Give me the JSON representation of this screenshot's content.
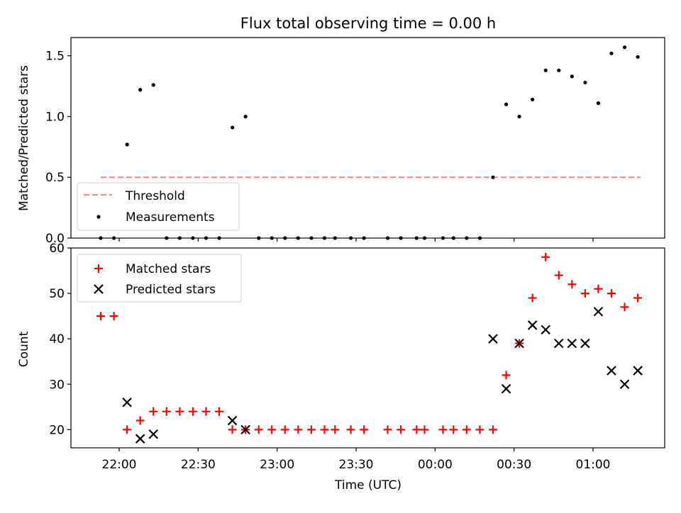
{
  "title": "Flux total observing time = 0.00 h",
  "xlabel": "Time (UTC)",
  "x_ticks": [
    "22:00",
    "22:30",
    "23:00",
    "23:30",
    "00:00",
    "00:30",
    "01:00"
  ],
  "chart_data": [
    {
      "type": "scatter",
      "panel": "top",
      "ylabel": "Matched/Predicted stars",
      "ylim": [
        0,
        1.65
      ],
      "y_ticks": [
        "0.0",
        "0.5",
        "1.0",
        "1.5"
      ],
      "legend_position": "lower-left",
      "threshold": {
        "name": "Threshold",
        "value": 0.5,
        "x_start": "21:53",
        "x_end": "01:18",
        "color": "#ff7f7f"
      },
      "series": [
        {
          "name": "Measurements",
          "color": "#000000",
          "points": [
            [
              "21:53",
              0.0
            ],
            [
              "21:58",
              0.0
            ],
            [
              "22:03",
              0.77
            ],
            [
              "22:08",
              1.22
            ],
            [
              "22:13",
              1.26
            ],
            [
              "22:18",
              0.0
            ],
            [
              "22:23",
              0.0
            ],
            [
              "22:28",
              0.0
            ],
            [
              "22:33",
              0.0
            ],
            [
              "22:38",
              0.0
            ],
            [
              "22:43",
              0.91
            ],
            [
              "22:48",
              1.0
            ],
            [
              "22:53",
              0.0
            ],
            [
              "22:58",
              0.0
            ],
            [
              "23:03",
              0.0
            ],
            [
              "23:08",
              0.0
            ],
            [
              "23:13",
              0.0
            ],
            [
              "23:18",
              0.0
            ],
            [
              "23:22",
              0.0
            ],
            [
              "23:28",
              0.0
            ],
            [
              "23:33",
              0.0
            ],
            [
              "23:42",
              0.0
            ],
            [
              "23:47",
              0.0
            ],
            [
              "23:53",
              0.0
            ],
            [
              "23:56",
              0.0
            ],
            [
              "00:03",
              0.0
            ],
            [
              "00:07",
              0.0
            ],
            [
              "00:12",
              0.0
            ],
            [
              "00:17",
              0.0
            ],
            [
              "00:22",
              0.5
            ],
            [
              "00:27",
              1.1
            ],
            [
              "00:32",
              1.0
            ],
            [
              "00:37",
              1.14
            ],
            [
              "00:42",
              1.38
            ],
            [
              "00:47",
              1.38
            ],
            [
              "00:52",
              1.33
            ],
            [
              "00:57",
              1.28
            ],
            [
              "01:02",
              1.11
            ],
            [
              "01:07",
              1.52
            ],
            [
              "01:12",
              1.57
            ],
            [
              "01:17",
              1.49
            ]
          ]
        }
      ]
    },
    {
      "type": "scatter",
      "panel": "bottom",
      "ylabel": "Count",
      "ylim": [
        16,
        60
      ],
      "y_ticks": [
        "20",
        "30",
        "40",
        "50",
        "60"
      ],
      "legend_position": "upper-left",
      "series": [
        {
          "name": "Matched stars",
          "color": "#ff0000",
          "marker": "plus",
          "points": [
            [
              "21:53",
              45
            ],
            [
              "21:58",
              45
            ],
            [
              "22:03",
              20
            ],
            [
              "22:08",
              22
            ],
            [
              "22:13",
              24
            ],
            [
              "22:18",
              24
            ],
            [
              "22:23",
              24
            ],
            [
              "22:28",
              24
            ],
            [
              "22:33",
              24
            ],
            [
              "22:38",
              24
            ],
            [
              "22:43",
              20
            ],
            [
              "22:48",
              20
            ],
            [
              "22:53",
              20
            ],
            [
              "22:58",
              20
            ],
            [
              "23:03",
              20
            ],
            [
              "23:08",
              20
            ],
            [
              "23:13",
              20
            ],
            [
              "23:18",
              20
            ],
            [
              "23:22",
              20
            ],
            [
              "23:28",
              20
            ],
            [
              "23:33",
              20
            ],
            [
              "23:42",
              20
            ],
            [
              "23:47",
              20
            ],
            [
              "23:53",
              20
            ],
            [
              "23:56",
              20
            ],
            [
              "00:03",
              20
            ],
            [
              "00:07",
              20
            ],
            [
              "00:12",
              20
            ],
            [
              "00:17",
              20
            ],
            [
              "00:22",
              20
            ],
            [
              "00:27",
              32
            ],
            [
              "00:32",
              39
            ],
            [
              "00:37",
              49
            ],
            [
              "00:42",
              58
            ],
            [
              "00:47",
              54
            ],
            [
              "00:52",
              52
            ],
            [
              "00:57",
              50
            ],
            [
              "01:02",
              51
            ],
            [
              "01:07",
              50
            ],
            [
              "01:12",
              47
            ],
            [
              "01:17",
              49
            ]
          ]
        },
        {
          "name": "Predicted stars",
          "color": "#000000",
          "marker": "x",
          "points": [
            [
              "22:03",
              26
            ],
            [
              "22:08",
              18
            ],
            [
              "22:13",
              19
            ],
            [
              "22:43",
              22
            ],
            [
              "22:48",
              20
            ],
            [
              "00:22",
              40
            ],
            [
              "00:27",
              29
            ],
            [
              "00:32",
              39
            ],
            [
              "00:37",
              43
            ],
            [
              "00:42",
              42
            ],
            [
              "00:47",
              39
            ],
            [
              "00:52",
              39
            ],
            [
              "00:57",
              39
            ],
            [
              "01:02",
              46
            ],
            [
              "01:07",
              33
            ],
            [
              "01:12",
              30
            ],
            [
              "01:17",
              33
            ]
          ]
        }
      ]
    }
  ]
}
